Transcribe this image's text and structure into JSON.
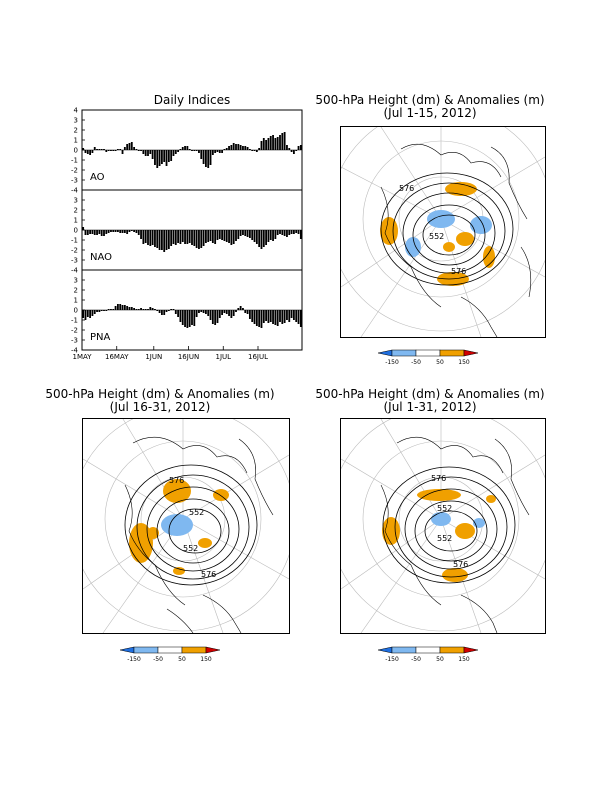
{
  "indices": {
    "title": "Daily Indices",
    "x_tick_labels": [
      "1MAY",
      "16MAY",
      "1JUN",
      "16JUN",
      "1JUL",
      "16JUL"
    ],
    "y_tick_labels": [
      "4",
      "3",
      "2",
      "1",
      "0",
      "-1",
      "-2",
      "-3",
      "-4"
    ]
  },
  "maps": [
    {
      "title": "500-hPa Height (dm) & Anomalies (m)",
      "subtitle": "(Jul 1-15, 2012)"
    },
    {
      "title": "500-hPa Height (dm) & Anomalies (m)",
      "subtitle": "(Jul 16-31, 2012)"
    },
    {
      "title": "500-hPa Height (dm) & Anomalies (m)",
      "subtitle": "(Jul 1-31, 2012)"
    }
  ],
  "map_contour_labels": {
    "c552": "552",
    "c576": "576"
  },
  "colorbar": {
    "labels": [
      "-150",
      "-50",
      "50",
      "150"
    ],
    "colors": {
      "strong_neg": "#1f6fe0",
      "neg": "#7fb8f0",
      "neutral": "#ffffff",
      "pos": "#f0a000",
      "strong_pos": "#d00000"
    }
  },
  "chart_data": [
    {
      "type": "bar",
      "name": "AO",
      "x_start": "1MAY",
      "ylim": [
        -4,
        4
      ],
      "values": [
        0.2,
        -0.3,
        -0.4,
        -0.5,
        -0.3,
        0.3,
        0.1,
        0.1,
        0.1,
        0.1,
        -0.2,
        -0.1,
        -0.1,
        -0.1,
        -0.1,
        0.1,
        0.1,
        -0.4,
        0.3,
        0.6,
        0.7,
        0.8,
        0.3,
        0.1,
        -0.1,
        -0.1,
        -0.4,
        -0.6,
        -0.6,
        -0.4,
        -0.9,
        -1.5,
        -1.8,
        -1.6,
        -1.4,
        -1.2,
        -1.6,
        -1.2,
        -1.1,
        -0.6,
        -0.4,
        -0.2,
        0.1,
        0.3,
        0.4,
        0.4,
        0.1,
        -0.1,
        -0.1,
        -0.1,
        -0.3,
        -0.9,
        -1.4,
        -1.7,
        -1.8,
        -1.5,
        -0.5,
        -0.3,
        -0.2,
        -0.3,
        -0.3,
        0.1,
        0.2,
        0.4,
        0.5,
        0.7,
        0.6,
        0.6,
        0.5,
        0.4,
        0.4,
        0.3,
        0.1,
        -0.1,
        -0.1,
        -0.2,
        0.2,
        0.9,
        1.2,
        1.0,
        1.2,
        1.4,
        1.5,
        1.2,
        1.3,
        1.5,
        1.7,
        1.8,
        0.5,
        0.2,
        -0.2,
        -0.4,
        -0.1,
        0.4,
        0.5
      ]
    },
    {
      "type": "bar",
      "name": "NAO",
      "x_start": "1MAY",
      "ylim": [
        -4,
        4
      ],
      "values": [
        0.3,
        -0.5,
        -0.5,
        -0.4,
        -0.4,
        -0.5,
        -0.5,
        -0.4,
        -0.6,
        -0.6,
        -0.4,
        -0.3,
        -0.2,
        -0.2,
        -0.2,
        -0.2,
        -0.3,
        -0.3,
        -0.3,
        -0.4,
        -0.2,
        -0.1,
        -0.2,
        -0.3,
        -0.5,
        -0.9,
        -1.4,
        -1.3,
        -1.5,
        -1.6,
        -1.5,
        -1.7,
        -1.8,
        -2.0,
        -2.0,
        -2.2,
        -2.0,
        -1.9,
        -1.6,
        -1.4,
        -1.5,
        -1.3,
        -1.4,
        -1.2,
        -1.4,
        -1.4,
        -1.3,
        -1.5,
        -1.6,
        -1.8,
        -1.9,
        -1.8,
        -1.6,
        -1.3,
        -1.2,
        -1.1,
        -1.3,
        -1.4,
        -1.0,
        -0.9,
        -1.0,
        -1.1,
        -1.2,
        -1.3,
        -1.5,
        -1.4,
        -1.1,
        -0.9,
        -0.6,
        -0.5,
        -0.6,
        -0.7,
        -0.8,
        -1.0,
        -1.2,
        -1.4,
        -1.7,
        -1.9,
        -1.7,
        -1.5,
        -1.2,
        -1.0,
        -1.1,
        -0.9,
        -0.5,
        -0.4,
        -0.5,
        -0.6,
        -0.7,
        -0.5,
        -0.4,
        -0.4,
        -0.3,
        -0.4,
        -0.9
      ]
    },
    {
      "type": "bar",
      "name": "PNA",
      "x_start": "1MAY",
      "ylim": [
        -4,
        4
      ],
      "values": [
        -0.8,
        -1.0,
        -0.7,
        -0.8,
        -0.6,
        -0.4,
        -0.2,
        -0.2,
        -0.1,
        -0.1,
        -0.1,
        0.1,
        0.1,
        0.1,
        0.4,
        0.6,
        0.6,
        0.5,
        0.5,
        0.4,
        0.3,
        0.3,
        0.2,
        0.1,
        0.1,
        0.2,
        0.1,
        0.1,
        0.1,
        0.3,
        0.2,
        0.1,
        -0.1,
        -0.3,
        -0.5,
        -0.5,
        -0.2,
        -0.1,
        0.1,
        0.1,
        -0.4,
        -0.7,
        -1.2,
        -1.5,
        -1.7,
        -1.8,
        -1.7,
        -1.5,
        -1.6,
        -0.7,
        -0.3,
        -0.2,
        -0.3,
        -0.4,
        -0.6,
        -1.0,
        -1.4,
        -1.5,
        -1.3,
        -0.8,
        -0.5,
        -0.3,
        -0.4,
        -0.6,
        -0.8,
        -0.6,
        -0.2,
        0.2,
        0.4,
        0.2,
        -0.3,
        -0.4,
        -0.9,
        -1.2,
        -1.4,
        -1.6,
        -1.7,
        -1.8,
        -1.3,
        -1.1,
        -1.3,
        -1.2,
        -1.4,
        -1.5,
        -1.6,
        -1.2,
        -1.4,
        -1.3,
        -1.0,
        -1.2,
        -0.8,
        -1.0,
        -1.2,
        -1.4,
        -1.7
      ]
    }
  ]
}
